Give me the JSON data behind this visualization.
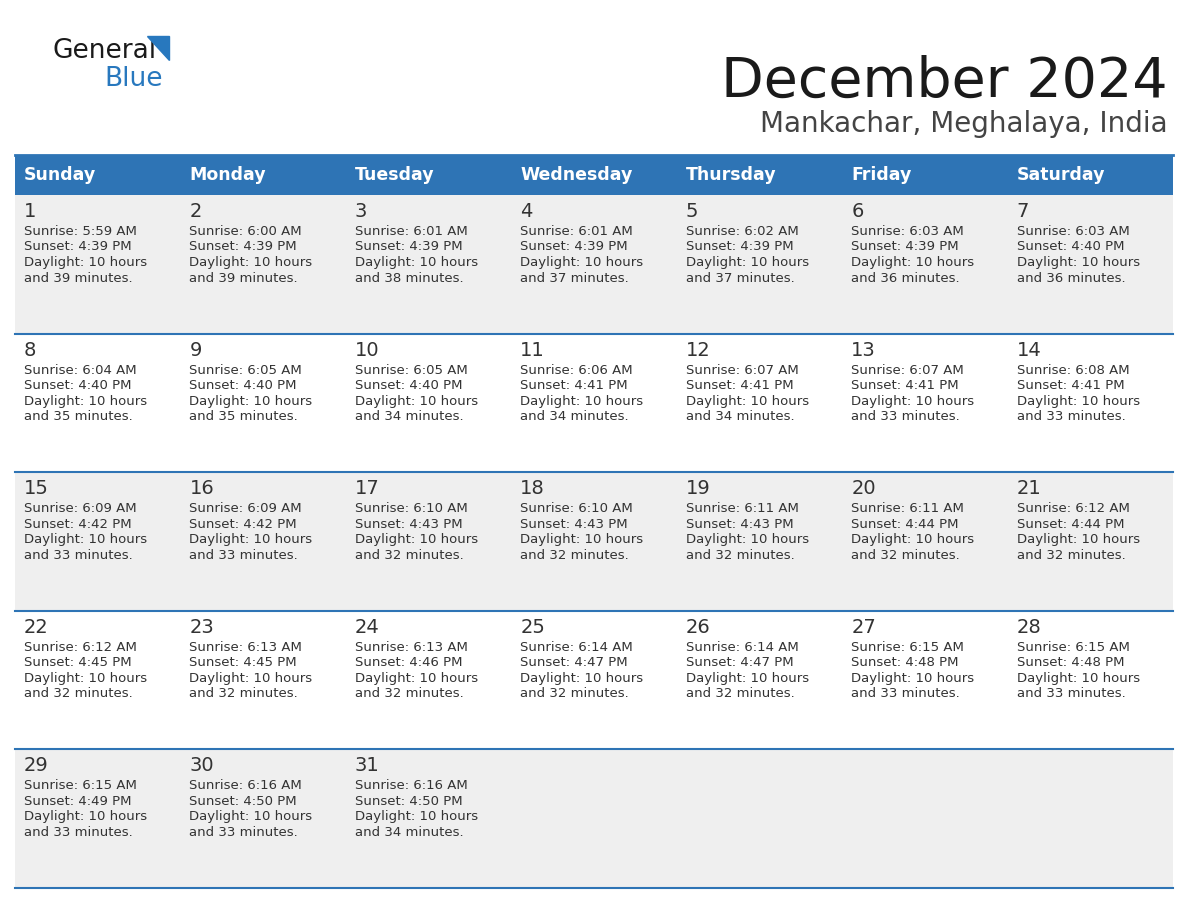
{
  "title": "December 2024",
  "subtitle": "Mankachar, Meghalaya, India",
  "header_color": "#2E74B5",
  "header_text_color": "#FFFFFF",
  "days_of_week": [
    "Sunday",
    "Monday",
    "Tuesday",
    "Wednesday",
    "Thursday",
    "Friday",
    "Saturday"
  ],
  "bg_color": "#FFFFFF",
  "row_color_even": "#EFEFEF",
  "row_color_odd": "#FFFFFF",
  "cell_border_color": "#2E74B5",
  "title_color": "#1a1a1a",
  "subtitle_color": "#444444",
  "day_num_color": "#333333",
  "cell_text_color": "#333333",
  "calendar": [
    [
      {
        "day": 1,
        "sunrise": "5:59 AM",
        "sunset": "4:39 PM",
        "dl_hours": 10,
        "dl_min": 39
      },
      {
        "day": 2,
        "sunrise": "6:00 AM",
        "sunset": "4:39 PM",
        "dl_hours": 10,
        "dl_min": 39
      },
      {
        "day": 3,
        "sunrise": "6:01 AM",
        "sunset": "4:39 PM",
        "dl_hours": 10,
        "dl_min": 38
      },
      {
        "day": 4,
        "sunrise": "6:01 AM",
        "sunset": "4:39 PM",
        "dl_hours": 10,
        "dl_min": 37
      },
      {
        "day": 5,
        "sunrise": "6:02 AM",
        "sunset": "4:39 PM",
        "dl_hours": 10,
        "dl_min": 37
      },
      {
        "day": 6,
        "sunrise": "6:03 AM",
        "sunset": "4:39 PM",
        "dl_hours": 10,
        "dl_min": 36
      },
      {
        "day": 7,
        "sunrise": "6:03 AM",
        "sunset": "4:40 PM",
        "dl_hours": 10,
        "dl_min": 36
      }
    ],
    [
      {
        "day": 8,
        "sunrise": "6:04 AM",
        "sunset": "4:40 PM",
        "dl_hours": 10,
        "dl_min": 35
      },
      {
        "day": 9,
        "sunrise": "6:05 AM",
        "sunset": "4:40 PM",
        "dl_hours": 10,
        "dl_min": 35
      },
      {
        "day": 10,
        "sunrise": "6:05 AM",
        "sunset": "4:40 PM",
        "dl_hours": 10,
        "dl_min": 34
      },
      {
        "day": 11,
        "sunrise": "6:06 AM",
        "sunset": "4:41 PM",
        "dl_hours": 10,
        "dl_min": 34
      },
      {
        "day": 12,
        "sunrise": "6:07 AM",
        "sunset": "4:41 PM",
        "dl_hours": 10,
        "dl_min": 34
      },
      {
        "day": 13,
        "sunrise": "6:07 AM",
        "sunset": "4:41 PM",
        "dl_hours": 10,
        "dl_min": 33
      },
      {
        "day": 14,
        "sunrise": "6:08 AM",
        "sunset": "4:41 PM",
        "dl_hours": 10,
        "dl_min": 33
      }
    ],
    [
      {
        "day": 15,
        "sunrise": "6:09 AM",
        "sunset": "4:42 PM",
        "dl_hours": 10,
        "dl_min": 33
      },
      {
        "day": 16,
        "sunrise": "6:09 AM",
        "sunset": "4:42 PM",
        "dl_hours": 10,
        "dl_min": 33
      },
      {
        "day": 17,
        "sunrise": "6:10 AM",
        "sunset": "4:43 PM",
        "dl_hours": 10,
        "dl_min": 32
      },
      {
        "day": 18,
        "sunrise": "6:10 AM",
        "sunset": "4:43 PM",
        "dl_hours": 10,
        "dl_min": 32
      },
      {
        "day": 19,
        "sunrise": "6:11 AM",
        "sunset": "4:43 PM",
        "dl_hours": 10,
        "dl_min": 32
      },
      {
        "day": 20,
        "sunrise": "6:11 AM",
        "sunset": "4:44 PM",
        "dl_hours": 10,
        "dl_min": 32
      },
      {
        "day": 21,
        "sunrise": "6:12 AM",
        "sunset": "4:44 PM",
        "dl_hours": 10,
        "dl_min": 32
      }
    ],
    [
      {
        "day": 22,
        "sunrise": "6:12 AM",
        "sunset": "4:45 PM",
        "dl_hours": 10,
        "dl_min": 32
      },
      {
        "day": 23,
        "sunrise": "6:13 AM",
        "sunset": "4:45 PM",
        "dl_hours": 10,
        "dl_min": 32
      },
      {
        "day": 24,
        "sunrise": "6:13 AM",
        "sunset": "4:46 PM",
        "dl_hours": 10,
        "dl_min": 32
      },
      {
        "day": 25,
        "sunrise": "6:14 AM",
        "sunset": "4:47 PM",
        "dl_hours": 10,
        "dl_min": 32
      },
      {
        "day": 26,
        "sunrise": "6:14 AM",
        "sunset": "4:47 PM",
        "dl_hours": 10,
        "dl_min": 32
      },
      {
        "day": 27,
        "sunrise": "6:15 AM",
        "sunset": "4:48 PM",
        "dl_hours": 10,
        "dl_min": 33
      },
      {
        "day": 28,
        "sunrise": "6:15 AM",
        "sunset": "4:48 PM",
        "dl_hours": 10,
        "dl_min": 33
      }
    ],
    [
      {
        "day": 29,
        "sunrise": "6:15 AM",
        "sunset": "4:49 PM",
        "dl_hours": 10,
        "dl_min": 33
      },
      {
        "day": 30,
        "sunrise": "6:16 AM",
        "sunset": "4:50 PM",
        "dl_hours": 10,
        "dl_min": 33
      },
      {
        "day": 31,
        "sunrise": "6:16 AM",
        "sunset": "4:50 PM",
        "dl_hours": 10,
        "dl_min": 34
      },
      null,
      null,
      null,
      null
    ]
  ],
  "logo_general_color": "#1a1a1a",
  "logo_blue_color": "#2878BE"
}
